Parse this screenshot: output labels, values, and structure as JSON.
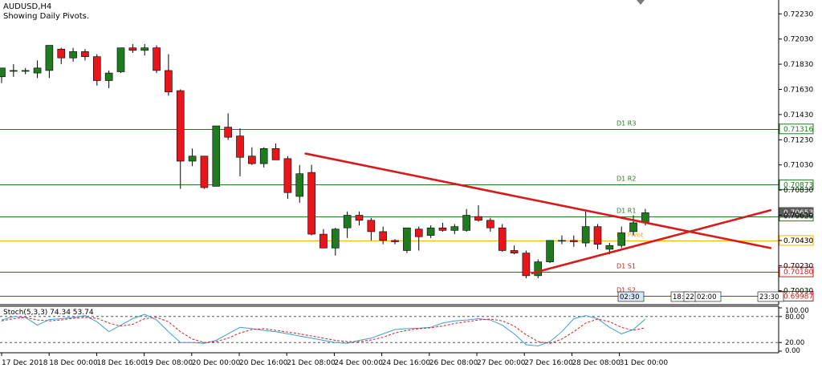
{
  "header": {
    "symbol": "AUDUSD,H4",
    "subtitle": "Showing Daily Pivots."
  },
  "colors": {
    "bull": "#1e7b1e",
    "bear": "#e8161b",
    "resistance": "#1e7b1e",
    "pivot": "#f2b400",
    "support": "#cc1d1d",
    "trendline": "#d71a1a",
    "stoch_main": "#3d9fd8",
    "stoch_signal": "#d62020"
  },
  "chart_data": [
    {
      "type": "candlestick",
      "title": "AUDUSD,H4",
      "ylim": [
        0.6992,
        0.7234
      ],
      "y_ticks": [
        "0.72230",
        "0.72030",
        "0.71830",
        "0.71630",
        "0.71430",
        "0.71230",
        "0.71030",
        "0.70830",
        "0.70630",
        "0.70430",
        "0.70230",
        "0.70030"
      ],
      "x_ticks": [
        "17 Dec 2018",
        "18 Dec 00:00",
        "18 Dec 16:00",
        "19 Dec 08:00",
        "20 Dec 00:00",
        "20 Dec 16:00",
        "21 Dec 08:00",
        "24 Dec 00:00",
        "24 Dec 16:00",
        "26 Dec 08:00",
        "27 Dec 00:00",
        "27 Dec 16:00",
        "28 Dec 08:00",
        "31 Dec 00:00"
      ],
      "time_markers": [
        "02:30",
        "18:",
        "22",
        "02:00",
        "23:30"
      ],
      "candles": [
        [
          0.7173,
          0.718,
          0.7168,
          0.718
        ],
        [
          0.7178,
          0.7183,
          0.7173,
          0.7178
        ],
        [
          0.7178,
          0.718,
          0.7175,
          0.7178
        ],
        [
          0.7176,
          0.7186,
          0.7172,
          0.718
        ],
        [
          0.7178,
          0.7196,
          0.7172,
          0.7198
        ],
        [
          0.7195,
          0.7196,
          0.7183,
          0.7188
        ],
        [
          0.7188,
          0.7196,
          0.7185,
          0.7193
        ],
        [
          0.7193,
          0.7195,
          0.7186,
          0.7189
        ],
        [
          0.7189,
          0.7191,
          0.7166,
          0.717
        ],
        [
          0.717,
          0.7178,
          0.7164,
          0.7176
        ],
        [
          0.7177,
          0.7196,
          0.7176,
          0.7196
        ],
        [
          0.7196,
          0.7199,
          0.7192,
          0.7194
        ],
        [
          0.7194,
          0.7199,
          0.719,
          0.7196
        ],
        [
          0.7196,
          0.7198,
          0.7176,
          0.7178
        ],
        [
          0.7178,
          0.7191,
          0.7158,
          0.7161
        ],
        [
          0.7162,
          0.7163,
          0.7084,
          0.7106
        ],
        [
          0.7106,
          0.7116,
          0.7102,
          0.711
        ],
        [
          0.711,
          0.711,
          0.7084,
          0.7085
        ],
        [
          0.7086,
          0.7134,
          0.7086,
          0.7134
        ],
        [
          0.7133,
          0.7144,
          0.7123,
          0.7125
        ],
        [
          0.7126,
          0.7132,
          0.7094,
          0.7109
        ],
        [
          0.711,
          0.7117,
          0.7103,
          0.7104
        ],
        [
          0.7104,
          0.7117,
          0.7101,
          0.7116
        ],
        [
          0.7116,
          0.712,
          0.7107,
          0.7107
        ],
        [
          0.7108,
          0.711,
          0.7076,
          0.7081
        ],
        [
          0.7078,
          0.7103,
          0.7073,
          0.7096
        ],
        [
          0.7097,
          0.7103,
          0.7047,
          0.7048
        ],
        [
          0.7048,
          0.7052,
          0.7037,
          0.7037
        ],
        [
          0.7037,
          0.7053,
          0.7031,
          0.7052
        ],
        [
          0.7053,
          0.7066,
          0.7045,
          0.7063
        ],
        [
          0.7063,
          0.7066,
          0.7055,
          0.7059
        ],
        [
          0.7059,
          0.7061,
          0.7043,
          0.705
        ],
        [
          0.705,
          0.7054,
          0.704,
          0.7043
        ],
        [
          0.7043,
          0.7044,
          0.704,
          0.7042
        ],
        [
          0.7035,
          0.7052,
          0.7033,
          0.7053
        ],
        [
          0.7052,
          0.7054,
          0.7035,
          0.7046
        ],
        [
          0.7047,
          0.7055,
          0.7045,
          0.7053
        ],
        [
          0.7053,
          0.7057,
          0.705,
          0.7051
        ],
        [
          0.7051,
          0.7056,
          0.7048,
          0.7054
        ],
        [
          0.7051,
          0.7068,
          0.705,
          0.7063
        ],
        [
          0.7062,
          0.7071,
          0.7058,
          0.7059
        ],
        [
          0.7059,
          0.7061,
          0.705,
          0.7053
        ],
        [
          0.7053,
          0.7056,
          0.7034,
          0.7035
        ],
        [
          0.7035,
          0.7039,
          0.7032,
          0.7033
        ],
        [
          0.7033,
          0.7035,
          0.7013,
          0.7015
        ],
        [
          0.7015,
          0.7028,
          0.7013,
          0.7026
        ],
        [
          0.7026,
          0.7043,
          0.7025,
          0.7043
        ],
        [
          0.7043,
          0.7047,
          0.704,
          0.7043
        ],
        [
          0.7043,
          0.7047,
          0.7038,
          0.7042
        ],
        [
          0.7041,
          0.7066,
          0.7038,
          0.7054
        ],
        [
          0.7054,
          0.7056,
          0.7036,
          0.704
        ],
        [
          0.7036,
          0.7041,
          0.7032,
          0.7039
        ],
        [
          0.7039,
          0.7054,
          0.7037,
          0.7049
        ],
        [
          0.705,
          0.7063,
          0.7047,
          0.7057
        ],
        [
          0.7057,
          0.7068,
          0.7055,
          0.7065
        ]
      ],
      "pivots": [
        {
          "label": "D1  R3",
          "value": 0.71316,
          "tag": "0.71316",
          "kind": "resistance"
        },
        {
          "label": "D1  R2",
          "value": 0.70873,
          "tag": "0.70873",
          "kind": "resistance"
        },
        {
          "label": "D1  R1",
          "value": 0.70623,
          "tag": "0.70623",
          "kind": "resistance"
        },
        {
          "label": "D1  Pivot",
          "value": 0.7043,
          "tag": "0.70430",
          "kind": "pivot"
        },
        {
          "label": "D1  S1",
          "value": 0.7018,
          "tag": "0.70180",
          "kind": "support"
        },
        {
          "label": "D1  S2",
          "value": 0.69987,
          "tag": "0.69987",
          "kind": "support"
        }
      ],
      "price_tag": {
        "value": 0.70653,
        "tag": "0.70653"
      },
      "trendlines": [
        {
          "name": "descending",
          "from": [
            25.5,
            0.7112
          ],
          "to": [
            64.5,
            0.7037
          ]
        },
        {
          "name": "ascending",
          "from": [
            44.5,
            0.7017
          ],
          "to": [
            64.5,
            0.7067
          ]
        }
      ]
    },
    {
      "type": "line",
      "title": "Stoch(5,3,3) 74.34 53.74",
      "ylim": [
        0,
        100
      ],
      "y_ticks": [
        "100.00",
        "80.00",
        "20.00",
        "0.00"
      ],
      "levels": [
        80,
        20
      ],
      "series": [
        {
          "name": "main",
          "values": [
            72,
            80,
            78,
            60,
            73,
            75,
            78,
            82,
            68,
            45,
            60,
            75,
            85,
            72,
            45,
            20,
            20,
            18,
            25,
            40,
            55,
            52,
            48,
            45,
            40,
            35,
            30,
            25,
            20,
            18,
            25,
            30,
            40,
            50,
            52,
            53,
            55,
            65,
            70,
            72,
            75,
            72,
            60,
            40,
            15,
            12,
            22,
            45,
            75,
            82,
            75,
            55,
            40,
            50,
            74
          ]
        },
        {
          "name": "signal",
          "values": [
            70,
            75,
            78,
            72,
            70,
            72,
            76,
            78,
            76,
            65,
            58,
            62,
            75,
            78,
            68,
            45,
            28,
            20,
            22,
            30,
            42,
            50,
            52,
            48,
            44,
            40,
            35,
            30,
            25,
            22,
            22,
            26,
            32,
            42,
            48,
            52,
            54,
            58,
            64,
            68,
            72,
            74,
            70,
            58,
            38,
            22,
            18,
            28,
            45,
            65,
            74,
            68,
            55,
            48,
            54
          ]
        }
      ]
    }
  ]
}
